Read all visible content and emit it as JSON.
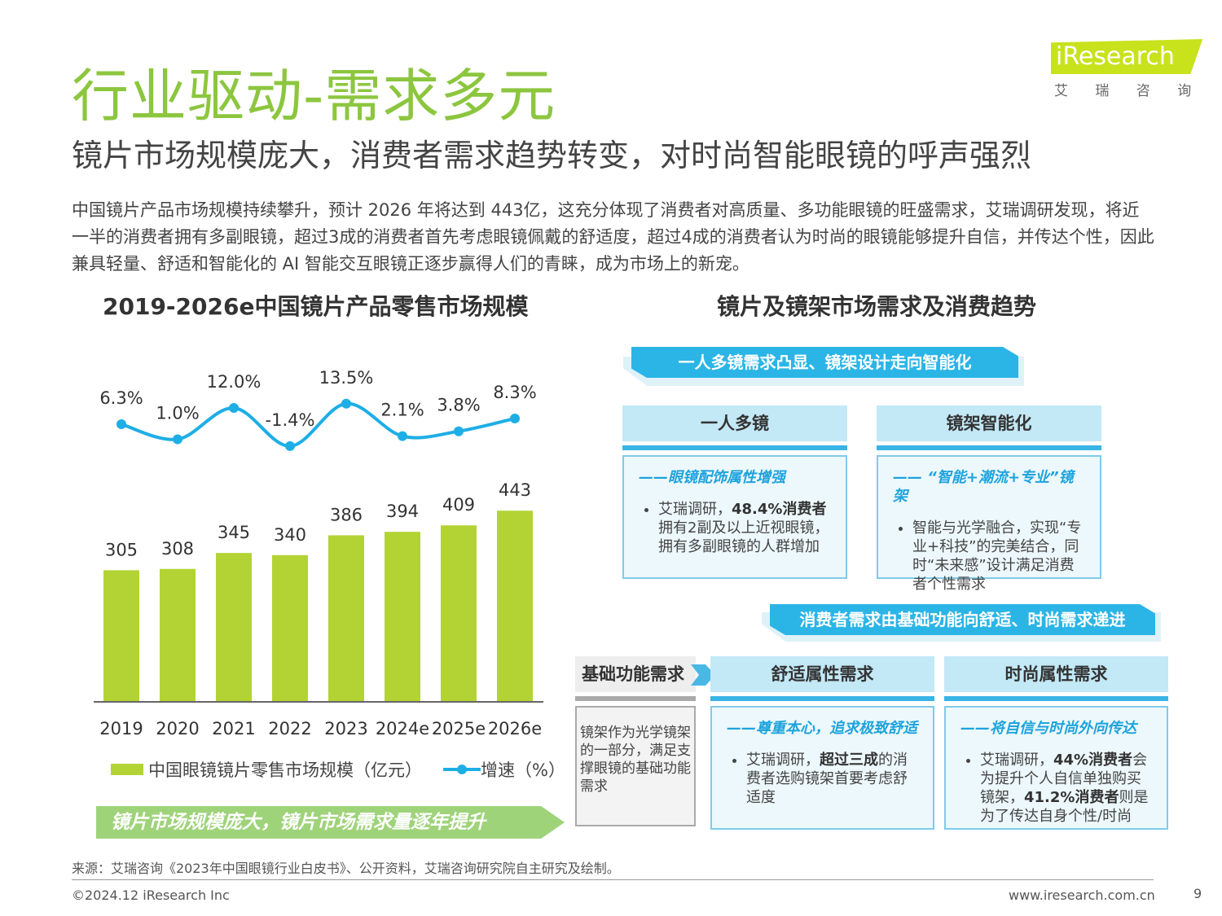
{
  "header": {
    "title": "行业驱动-需求多元",
    "subtitle": "镜片市场规模庞大，消费者需求趋势转变，对时尚智能眼镜的呼声强烈",
    "intro": "中国镜片产品市场规模持续攀升，预计 2026 年将达到 443亿，这充分体现了消费者对高质量、多功能眼镜的旺盛需求，艾瑞调研发现，将近一半的消费者拥有多副眼镜，超过3成的消费者首先考虑眼镜佩戴的舒适度，超过4成的消费者认为时尚的眼镜能够提升自信，并传达个性，因此兼具轻量、舒适和智能化的 AI 智能交互眼镜正逐步赢得人们的青睐，成为市场上的新宠。"
  },
  "logo": {
    "text": "iResearch",
    "sub": "艾 瑞 咨 询",
    "color": "#c8e21c"
  },
  "chart_data": {
    "type": "bar+line",
    "title": "2019-2026e中国镜片产品零售市场规模",
    "categories": [
      "2019",
      "2020",
      "2021",
      "2022",
      "2023",
      "2024e",
      "2025e",
      "2026e"
    ],
    "series": [
      {
        "name": "中国眼镜镜片零售市场规模（亿元）",
        "type": "bar",
        "color": "#b3d334",
        "values": [
          305,
          308,
          345,
          340,
          386,
          394,
          409,
          443
        ]
      },
      {
        "name": "增速（%）",
        "type": "line",
        "color": "#1eaee6",
        "values": [
          6.3,
          1.0,
          12.0,
          -1.4,
          13.5,
          2.1,
          3.8,
          8.3
        ]
      }
    ],
    "legend": "bottom",
    "grid": false,
    "conclusion": "镜片市场规模庞大，镜片市场需求量逐年提升"
  },
  "right": {
    "title": "镜片及镜架市场需求及消费趋势",
    "banner1": "一人多镜需求凸显、镜架设计走向智能化",
    "cards1": [
      {
        "head": "一人多镜",
        "lead": "——眼镜配饰属性增强",
        "pre": "艾瑞调研，",
        "bold": "48.4%消费者",
        "post": "拥有2副及以上近视眼镜，拥有多副眼镜的人群增加"
      },
      {
        "head": "镜架智能化",
        "lead": "—— “智能+潮流+专业”镜架",
        "pre": "智能与光学融合，实现“专业+科技”的完美结合，同时“未来感”设计满足消费者个性需求",
        "bold": "",
        "post": ""
      }
    ],
    "banner2": "消费者需求由基础功能向舒适、时尚需求递进",
    "basic": {
      "head": "基础功能需求",
      "text": "镜架作为光学镜架的一部分，满足支撑眼镜的基础功能需求"
    },
    "cards2": [
      {
        "head": "舒适属性需求",
        "lead": "——尊重本心，追求极致舒适",
        "pre": "艾瑞调研，",
        "bold": "超过三成",
        "post": "的消费者选购镜架首要考虑舒适度"
      },
      {
        "head": "时尚属性需求",
        "lead": "——将自信与时尚外向传达",
        "pre": "艾瑞调研，",
        "bold": "44%消费者",
        "post": "会为提升个人自信单独购买镜架，",
        "bold2": "41.2%消费者",
        "post2": "则是为了传达自身个性/时尚"
      }
    ]
  },
  "footer": {
    "source": "来源：艾瑞咨询《2023年中国眼镜行业白皮书》、公开资料，艾瑞咨询研究院自主研究及绘制。",
    "copyright": "©2024.12 iResearch Inc",
    "url": "www.iresearch.com.cn",
    "page": "9"
  }
}
